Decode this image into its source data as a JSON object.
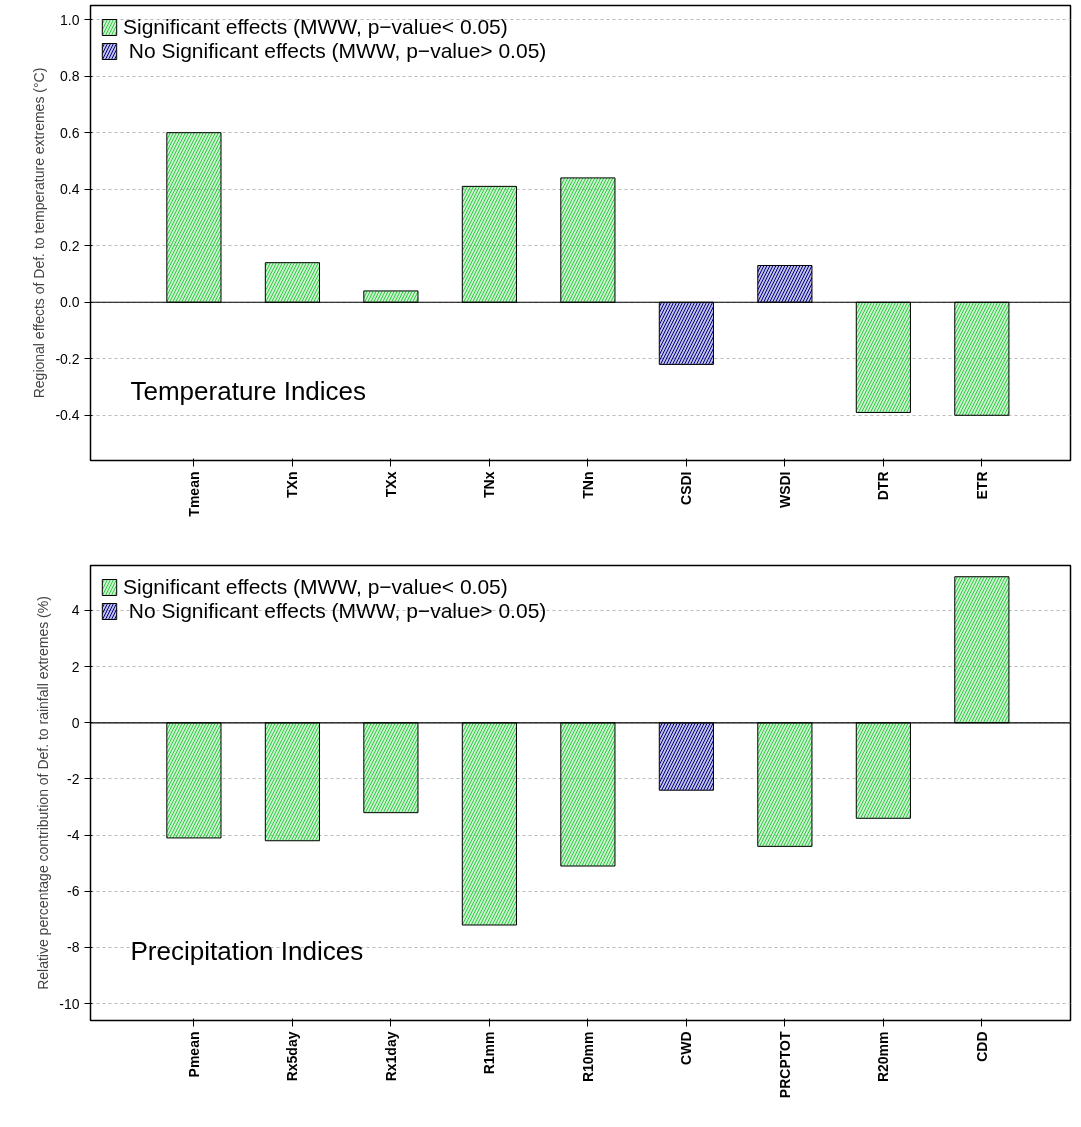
{
  "chart_data": [
    {
      "type": "bar",
      "ylabel": "Regional effects of Def. to temperature extremes (°C)",
      "categories": [
        "Tmean",
        "TXn",
        "TXx",
        "TNx",
        "TNn",
        "CSDI",
        "WSDI",
        "DTR",
        "ETR"
      ],
      "series": [
        {
          "name": "Significant effects (MWW, p−value< 0.05)",
          "color": "#2ecc40",
          "values": [
            0.6,
            0.14,
            0.04,
            0.41,
            0.44,
            null,
            null,
            -0.39,
            -0.4
          ]
        },
        {
          "name": " No Significant effects (MWW, p−value> 0.05)",
          "color": "#00008b",
          "values": [
            null,
            null,
            null,
            null,
            null,
            -0.22,
            0.13,
            null,
            null
          ]
        }
      ],
      "ylim": [
        -0.56,
        1.05
      ],
      "yticks": [
        -0.4,
        -0.2,
        {
          "value": 0,
          "label": "0.0"
        },
        0.2,
        0.4,
        0.6,
        0.8,
        {
          "value": 1,
          "label": "1.0"
        }
      ],
      "ref_lines": [
        {
          "axis": "y",
          "value": 0,
          "color": "#000000"
        }
      ],
      "annotations": [
        "Temperature Indices"
      ],
      "grid": "y",
      "legend": "top left"
    },
    {
      "type": "bar",
      "ylabel": "Relative percentage contribution of Def. to rainfall extremes (%)",
      "categories": [
        "Pmean",
        "Rx5day",
        "Rx1day",
        "R1mm",
        "R10mm",
        "CWD",
        "PRCPTOT",
        "R20mm",
        "CDD"
      ],
      "series": [
        {
          "name": "Significant effects (MWW, p−value< 0.05)",
          "color": "#2ecc40",
          "values": [
            -4.1,
            -4.2,
            -3.2,
            -7.2,
            -5.1,
            null,
            -4.4,
            -3.4,
            5.2
          ]
        },
        {
          "name": " No Significant effects (MWW, p−value> 0.05)",
          "color": "#00008b",
          "values": [
            null,
            null,
            null,
            null,
            null,
            -2.4,
            null,
            null,
            null
          ]
        }
      ],
      "ylim": [
        -10.6,
        5.6
      ],
      "yticks": [
        -10,
        -8,
        -6,
        -4,
        -2,
        0,
        2,
        4
      ],
      "ref_lines": [
        {
          "axis": "y",
          "value": 0,
          "color": "#000000"
        }
      ],
      "annotations": [
        "Precipitation Indices"
      ],
      "grid": "y",
      "legend": "top left"
    }
  ]
}
